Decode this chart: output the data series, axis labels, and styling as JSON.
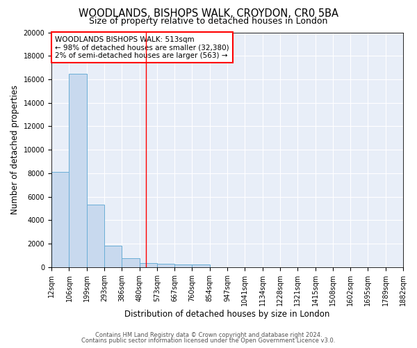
{
  "title": "WOODLANDS, BISHOPS WALK, CROYDON, CR0 5BA",
  "subtitle": "Size of property relative to detached houses in London",
  "xlabel": "Distribution of detached houses by size in London",
  "ylabel": "Number of detached properties",
  "bar_color": "#c8d9ee",
  "bar_edge_color": "#6aaed6",
  "background_color": "#e8eef8",
  "grid_color": "#ffffff",
  "red_line_x": 513,
  "legend_text_1": "WOODLANDS BISHOPS WALK: 513sqm",
  "legend_text_2": "← 98% of detached houses are smaller (32,380)",
  "legend_text_3": "2% of semi-detached houses are larger (563) →",
  "property_size": 513,
  "footer1": "Contains HM Land Registry data © Crown copyright and database right 2024.",
  "footer2": "Contains public sector information licensed under the Open Government Licence v3.0.",
  "bin_edges": [
    12,
    106,
    199,
    293,
    386,
    480,
    573,
    667,
    760,
    854,
    947,
    1041,
    1134,
    1228,
    1321,
    1415,
    1508,
    1602,
    1695,
    1789,
    1882
  ],
  "bin_counts": [
    8100,
    16500,
    5300,
    1850,
    750,
    350,
    280,
    220,
    200,
    0,
    0,
    0,
    0,
    0,
    0,
    0,
    0,
    0,
    0,
    0
  ],
  "ylim": [
    0,
    20000
  ],
  "title_fontsize": 10.5,
  "subtitle_fontsize": 9,
  "axis_fontsize": 8.5,
  "tick_fontsize": 7,
  "legend_fontsize": 7.5,
  "footer_fontsize": 6
}
